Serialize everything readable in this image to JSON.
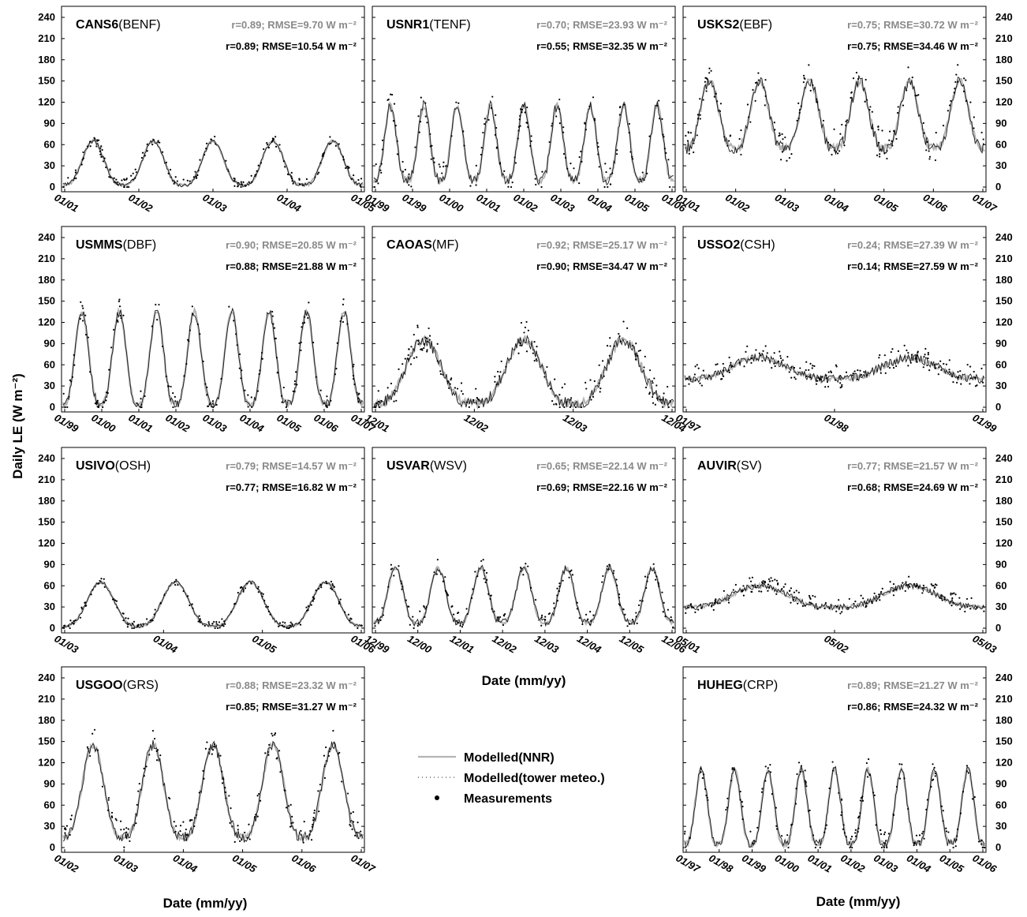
{
  "figure": {
    "ylabel": "Daily LE (W m⁻²)",
    "xlabel": "Date (mm/yy)"
  },
  "legend": {
    "items": [
      "Modelled(NNR)",
      "Modelled(tower meteo.)",
      "Measurements"
    ]
  },
  "colors": {
    "nnr": "#b4b4b4",
    "tower": "#1a1a1a",
    "measurements": "#000000",
    "gray_text": "#8a8a8a",
    "frame": "#000000"
  },
  "chart_data": [
    {
      "type": "line",
      "site": "CANS6",
      "pft": "(BENF)",
      "stat_nnr": "r=0.89; RMSE=9.70 W m⁻²",
      "stat_tower": "r=0.89; RMSE=10.54 W m⁻²",
      "ylim": [
        0,
        240
      ],
      "yticks": [
        0,
        30,
        60,
        90,
        120,
        150,
        180,
        210,
        240
      ],
      "xticks": [
        "01/01",
        "01/02",
        "01/03",
        "01/04",
        "01/05"
      ],
      "xlim": [
        "2001-01-01",
        "2006-01-01"
      ],
      "cycles": 5,
      "peak": 65,
      "base": 3,
      "noise": 12
    },
    {
      "type": "line",
      "site": "USNR1",
      "pft": "(TENF)",
      "stat_nnr": "r=0.70; RMSE=23.93 W m⁻²",
      "stat_tower": "r=0.55; RMSE=32.35 W m⁻²",
      "ylim": [
        0,
        240
      ],
      "yticks": [
        0,
        30,
        60,
        90,
        120,
        150,
        180,
        210,
        240
      ],
      "xticks": [
        "01/99",
        "01/99",
        "01/00",
        "01/01",
        "01/02",
        "01/03",
        "01/04",
        "01/05",
        "01/06"
      ],
      "xlim": [
        "1998-11-01",
        "2007-01-01"
      ],
      "cycles": 9,
      "peak": 115,
      "base": 10,
      "noise": 30
    },
    {
      "type": "line",
      "site": "USKS2",
      "pft": "(EBF)",
      "stat_nnr": "r=0.75; RMSE=30.72 W m⁻²",
      "stat_tower": "r=0.75; RMSE=34.46 W m⁻²",
      "ylim": [
        0,
        240
      ],
      "yticks": [
        0,
        30,
        60,
        90,
        120,
        150,
        180,
        210,
        240
      ],
      "xticks": [
        "01/01",
        "01/02",
        "01/03",
        "01/04",
        "01/05",
        "01/06",
        "01/07"
      ],
      "xlim": [
        "2001-01-01",
        "2007-01-01"
      ],
      "cycles": 6,
      "peak": 150,
      "base": 55,
      "noise": 35
    },
    {
      "type": "line",
      "site": "USMMS",
      "pft": "(DBF)",
      "stat_nnr": "r=0.90; RMSE=20.85 W m⁻²",
      "stat_tower": "r=0.88; RMSE=21.88 W m⁻²",
      "ylim": [
        0,
        240
      ],
      "yticks": [
        0,
        30,
        60,
        90,
        120,
        150,
        180,
        210,
        240
      ],
      "xticks": [
        "01/99",
        "01/00",
        "01/01",
        "01/02",
        "01/03",
        "01/04",
        "01/05",
        "01/06",
        "01/07"
      ],
      "xlim": [
        "1999-01-01",
        "2007-01-01"
      ],
      "cycles": 8,
      "peak": 135,
      "base": 5,
      "noise": 25
    },
    {
      "type": "line",
      "site": "CAOAS",
      "pft": "(MF)",
      "stat_nnr": "r=0.92; RMSE=25.17 W m⁻²",
      "stat_tower": "r=0.90; RMSE=34.47 W m⁻²",
      "ylim": [
        0,
        240
      ],
      "yticks": [
        0,
        30,
        60,
        90,
        120,
        150,
        180,
        210,
        240
      ],
      "xticks": [
        "12/01",
        "12/02",
        "12/03",
        "12/04"
      ],
      "xlim": [
        "2001-12-01",
        "2004-12-01"
      ],
      "cycles": 3,
      "peak": 95,
      "base": 5,
      "noise": 35
    },
    {
      "type": "line",
      "site": "USSO2",
      "pft": "(CSH)",
      "stat_nnr": "r=0.24; RMSE=27.39 W m⁻²",
      "stat_tower": "r=0.14; RMSE=27.59 W m⁻²",
      "ylim": [
        0,
        240
      ],
      "yticks": [
        0,
        30,
        60,
        90,
        120,
        150,
        180,
        210,
        240
      ],
      "xticks": [
        "01/97",
        "01/98",
        "01/99"
      ],
      "xlim": [
        "1997-01-01",
        "1999-01-01"
      ],
      "cycles": 2,
      "peak": 70,
      "base": 40,
      "noise": 25
    },
    {
      "type": "line",
      "site": "USIVO",
      "pft": "(OSH)",
      "stat_nnr": "r=0.79; RMSE=14.57 W m⁻²",
      "stat_tower": "r=0.77; RMSE=16.82 W m⁻²",
      "ylim": [
        0,
        240
      ],
      "yticks": [
        0,
        30,
        60,
        90,
        120,
        150,
        180,
        210,
        240
      ],
      "xticks": [
        "01/03",
        "01/04",
        "01/05",
        "01/06"
      ],
      "xlim": [
        "2003-01-01",
        "2007-01-01"
      ],
      "cycles": 4,
      "peak": 65,
      "base": 3,
      "noise": 10
    },
    {
      "type": "line",
      "site": "USVAR",
      "pft": "(WSV)",
      "stat_nnr": "r=0.65; RMSE=22.14 W m⁻²",
      "stat_tower": "r=0.69; RMSE=22.16 W m⁻²",
      "ylim": [
        0,
        240
      ],
      "yticks": [
        0,
        30,
        60,
        90,
        120,
        150,
        180,
        210,
        240
      ],
      "xticks": [
        "12/99",
        "12/00",
        "12/01",
        "12/02",
        "12/03",
        "12/04",
        "12/05",
        "12/06"
      ],
      "xlim": [
        "1999-12-01",
        "2006-12-01"
      ],
      "cycles": 7,
      "peak": 85,
      "base": 8,
      "noise": 20
    },
    {
      "type": "line",
      "site": "AUVIR",
      "pft": "(SV)",
      "stat_nnr": "r=0.77; RMSE=21.57 W m⁻²",
      "stat_tower": "r=0.68; RMSE=24.69 W m⁻²",
      "ylim": [
        0,
        240
      ],
      "yticks": [
        0,
        30,
        60,
        90,
        120,
        150,
        180,
        210,
        240
      ],
      "xticks": [
        "05/01",
        "05/02",
        "05/03"
      ],
      "xlim": [
        "2001-05-01",
        "2003-11-01"
      ],
      "cycles": 2,
      "peak": 60,
      "base": 30,
      "noise": 18
    },
    {
      "type": "line",
      "site": "USGOO",
      "pft": "(GRS)",
      "stat_nnr": "r=0.88; RMSE=23.32 W m⁻²",
      "stat_tower": "r=0.85; RMSE=31.27 W m⁻²",
      "ylim": [
        0,
        240
      ],
      "yticks": [
        0,
        30,
        60,
        90,
        120,
        150,
        180,
        210,
        240
      ],
      "xticks": [
        "01/02",
        "01/03",
        "01/04",
        "01/05",
        "01/06",
        "01/07"
      ],
      "xlim": [
        "2002-01-01",
        "2007-01-01"
      ],
      "cycles": 5,
      "peak": 145,
      "base": 15,
      "noise": 30
    },
    {
      "type": "line",
      "site": "HUHEG",
      "pft": "(CRP)",
      "stat_nnr": "r=0.89; RMSE=21.27 W m⁻²",
      "stat_tower": "r=0.86; RMSE=24.32 W m⁻²",
      "ylim": [
        0,
        240
      ],
      "yticks": [
        0,
        30,
        60,
        90,
        120,
        150,
        180,
        210,
        240
      ],
      "xticks": [
        "01/97",
        "01/98",
        "01/99",
        "01/00",
        "01/01",
        "01/02",
        "01/03",
        "01/04",
        "01/05",
        "01/06"
      ],
      "xlim": [
        "1997-01-01",
        "2006-01-01"
      ],
      "cycles": 9,
      "peak": 110,
      "base": 5,
      "noise": 25
    }
  ]
}
